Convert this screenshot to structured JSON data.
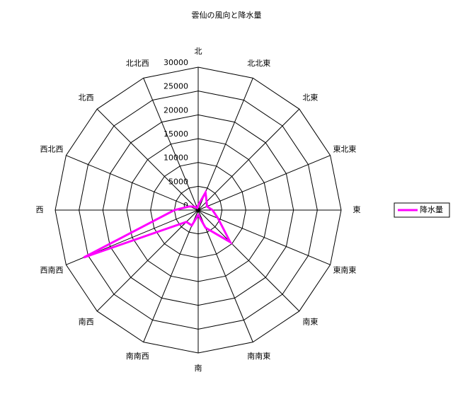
{
  "chart_data": {
    "type": "radar",
    "title": "雲仙の風向と降水量",
    "categories": [
      "北",
      "北北東",
      "北東",
      "東北東",
      "東",
      "東南東",
      "南東",
      "南南東",
      "南",
      "南南西",
      "南西",
      "西南西",
      "西",
      "西北西",
      "北西",
      "北北西"
    ],
    "series": [
      {
        "name": "降水量",
        "color": "#ff00ff",
        "values": [
          1000,
          4000,
          2500,
          2000,
          3000,
          4500,
          9500,
          4000,
          1000,
          3500,
          3500,
          26000,
          5000,
          2000,
          1000,
          500
        ]
      }
    ],
    "ylim": [
      0,
      30000
    ],
    "yticks": [
      0,
      5000,
      10000,
      15000,
      20000,
      25000,
      30000
    ],
    "grid": true,
    "legend": "right"
  }
}
